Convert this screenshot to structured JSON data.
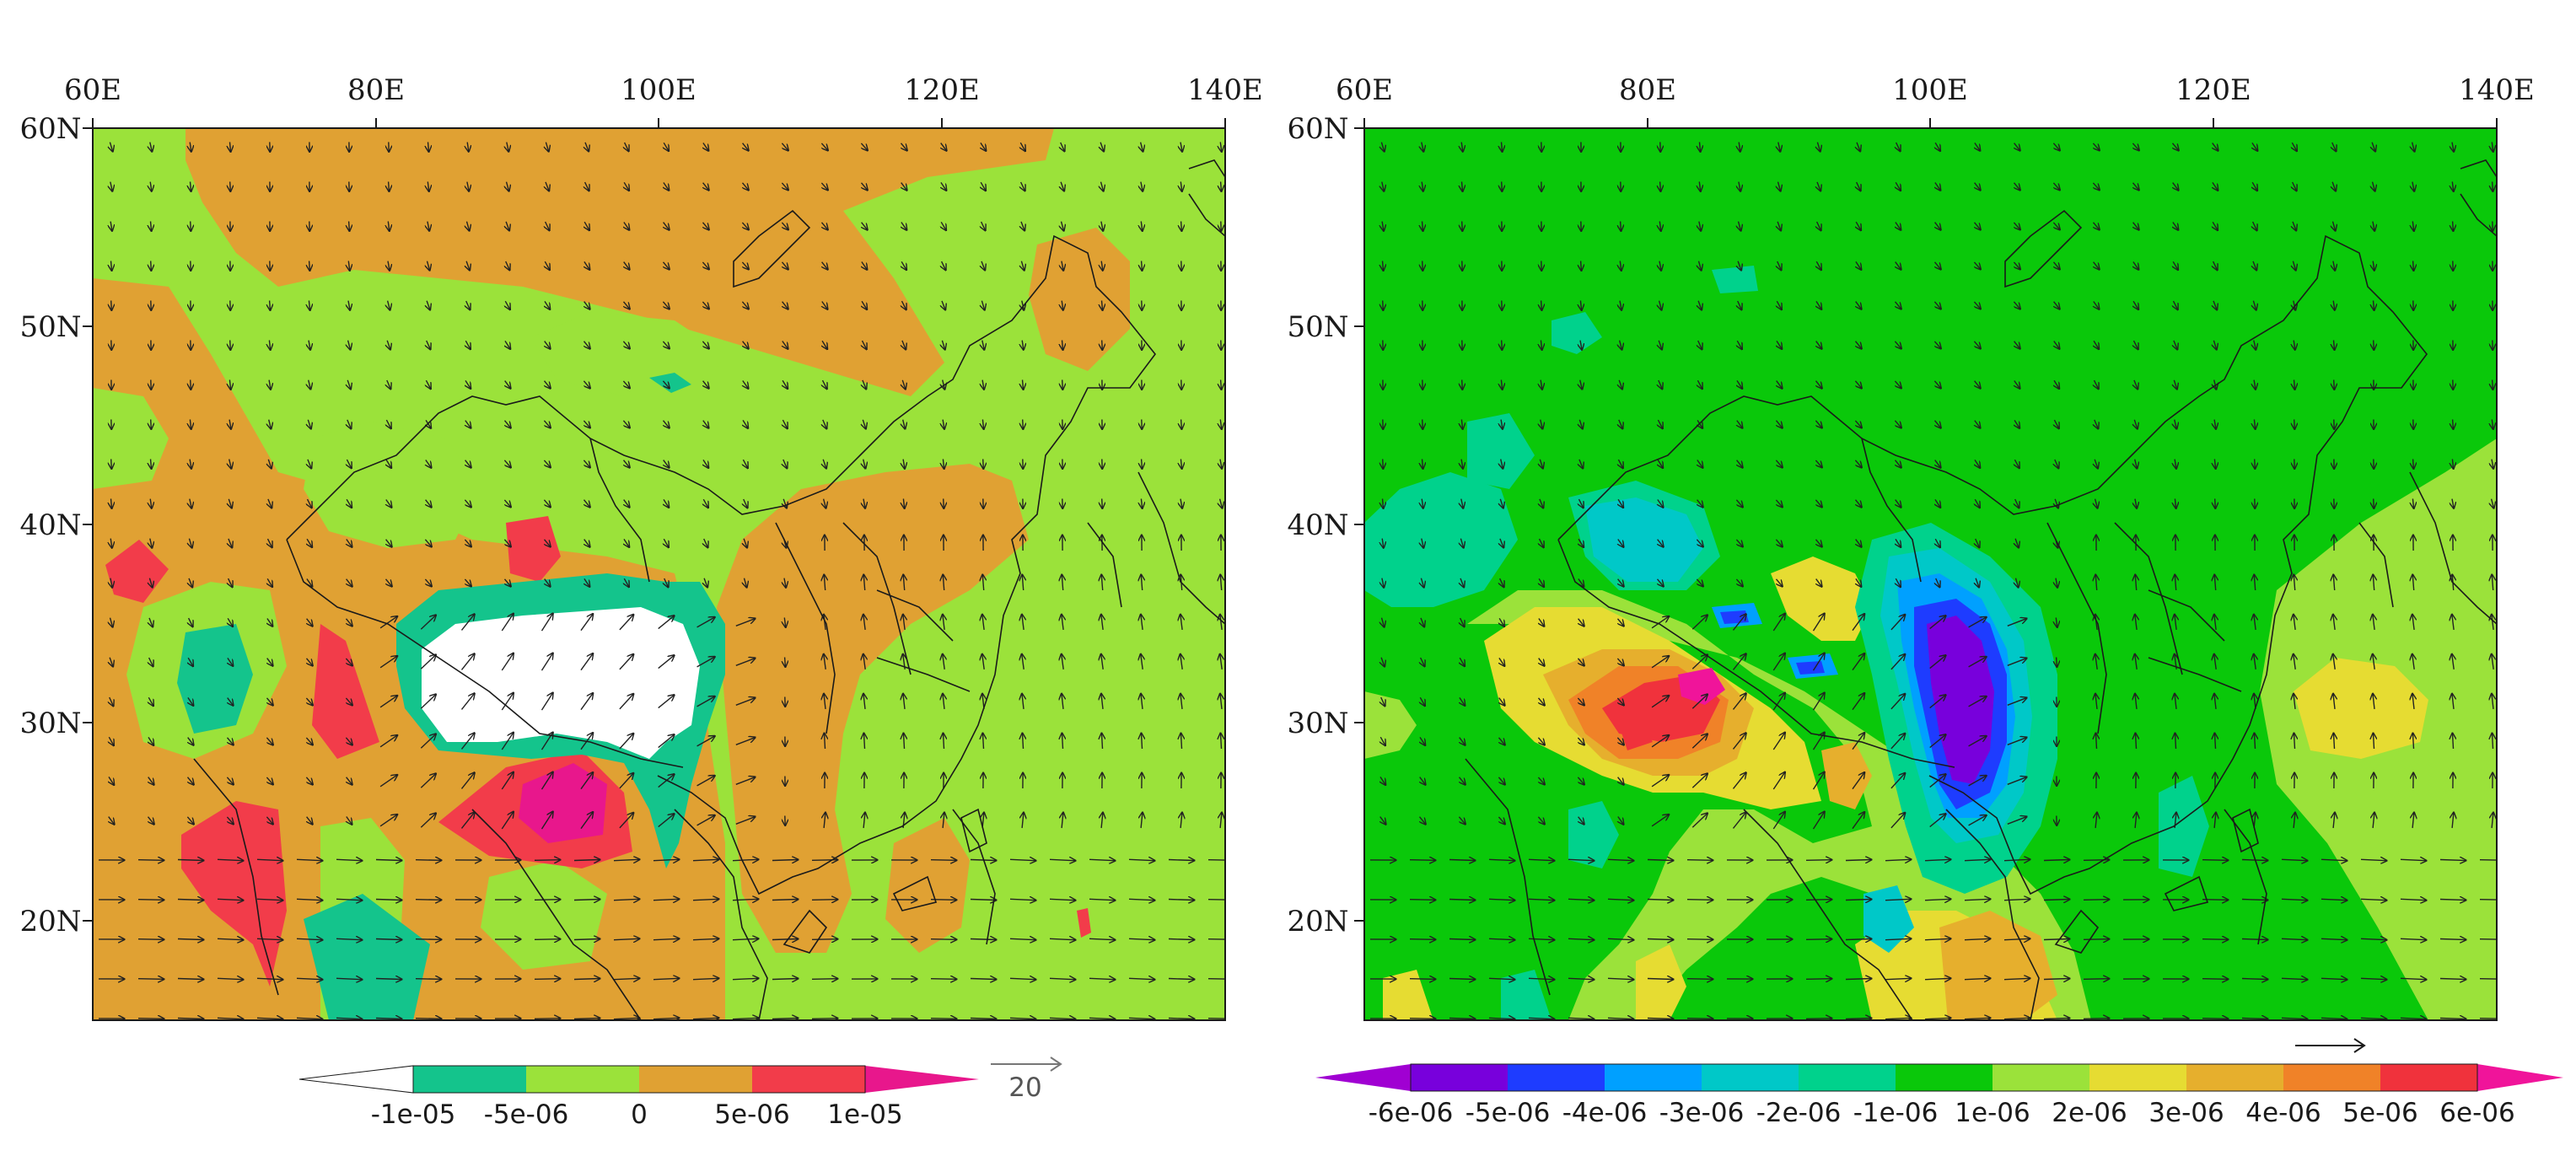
{
  "panels": [
    {
      "id": "left",
      "x_ticks": [
        "60E",
        "80E",
        "100E",
        "120E",
        "140E"
      ],
      "y_ticks": [
        "60N",
        "50N",
        "40N",
        "30N",
        "20N"
      ],
      "extent": {
        "lon": [
          60,
          140
        ],
        "lat": [
          15,
          60
        ]
      },
      "background_color": "#9be23a",
      "colorbar": {
        "colors": [
          "#ffffff",
          "#14c48c",
          "#9be23a",
          "#e0a133",
          "#f23c4a",
          "#e8178c"
        ],
        "labels": [
          "-1e-05",
          "-5e-06",
          "0",
          "5e-06",
          "1e-05"
        ]
      },
      "reference_vector_label": "20"
    },
    {
      "id": "right",
      "x_ticks": [
        "60E",
        "80E",
        "100E",
        "120E",
        "140E"
      ],
      "y_ticks": [
        "60N",
        "50N",
        "40N",
        "30N",
        "20N"
      ],
      "extent": {
        "lon": [
          60,
          140
        ],
        "lat": [
          15,
          60
        ]
      },
      "background_color": "#0ac80a",
      "colorbar": {
        "colors": [
          "#a000d2",
          "#7800dc",
          "#1e3cff",
          "#00a0ff",
          "#00c8c8",
          "#00d28c",
          "#0ac80a",
          "#9be23a",
          "#e6dc32",
          "#e6af2d",
          "#f08228",
          "#f0323c",
          "#f0149a"
        ],
        "labels": [
          "-6e-06",
          "-5e-06",
          "-4e-06",
          "-3e-06",
          "-2e-06",
          "-1e-06",
          "1e-06",
          "2e-06",
          "3e-06",
          "4e-06",
          "5e-06",
          "6e-06"
        ]
      },
      "reference_vector_label": ""
    }
  ]
}
